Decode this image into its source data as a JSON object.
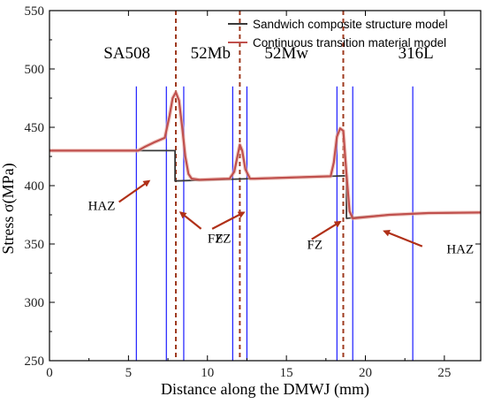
{
  "chart_data": {
    "type": "line",
    "xlabel": "Distance along the DMWJ (mm)",
    "ylabel": "Stress  σ(MPa)",
    "xlim": [
      0,
      27.3
    ],
    "ylim": [
      250,
      550
    ],
    "xticks": [
      0,
      5,
      10,
      15,
      20,
      25
    ],
    "yticks": [
      250,
      300,
      350,
      400,
      450,
      500,
      550
    ],
    "grid": false,
    "legend_position": "top-right",
    "series": [
      {
        "name": "Sandwich composite structure model",
        "color": "#3a3a3a",
        "x": [
          0,
          7.95,
          7.95,
          18.8,
          18.8,
          19.6,
          21.5,
          24.0,
          27.3
        ],
        "y": [
          430,
          430,
          404,
          408.5,
          372,
          373,
          375,
          376.5,
          377
        ]
      },
      {
        "name": "Continuous transition material model",
        "color": "#c0504d",
        "x": [
          0,
          5.6,
          6.0,
          6.6,
          7.3,
          7.6,
          7.8,
          8.0,
          8.2,
          8.4,
          8.6,
          8.8,
          9.0,
          9.5,
          11.4,
          11.7,
          11.9,
          12.05,
          12.2,
          12.4,
          12.7,
          13.0,
          17.8,
          18.0,
          18.2,
          18.4,
          18.6,
          18.8,
          19.0,
          19.2,
          21.5,
          24.0,
          27.3
        ],
        "y": [
          430,
          430,
          433,
          437,
          441,
          460,
          475,
          480,
          473,
          450,
          425,
          410,
          406,
          405,
          406,
          412,
          425,
          435,
          430,
          414,
          406,
          406,
          408,
          420,
          442,
          449,
          447,
          410,
          378,
          372,
          375,
          376.5,
          377
        ]
      }
    ],
    "vlines_dashed": {
      "color": "#9e3a1f",
      "x": [
        8.0,
        12.05,
        18.6
      ]
    },
    "vlines_solid": {
      "color": "#1a1aff",
      "x": [
        5.5,
        7.4,
        8.5,
        11.6,
        12.5,
        18.2,
        19.2,
        23.0
      ]
    },
    "region_labels": [
      {
        "text": "SA508",
        "x": 4.9,
        "y": 509
      },
      {
        "text": "52Mb",
        "x": 10.2,
        "y": 509
      },
      {
        "text": "52Mw",
        "x": 15.0,
        "y": 509
      },
      {
        "text": "316L",
        "x": 23.2,
        "y": 509
      }
    ],
    "annotations": [
      {
        "text": "HAZ",
        "x": 3.3,
        "y": 379,
        "arrow_from": [
          4.4,
          386
        ],
        "arrow_to": [
          6.3,
          404
        ]
      },
      {
        "text": "FZ",
        "x": 10.5,
        "y": 351,
        "arrow_from": [
          9.6,
          363
        ],
        "arrow_to": [
          8.3,
          377
        ]
      },
      {
        "text": "FZ",
        "x": 11.0,
        "y": 351,
        "arrow_from": [
          10.3,
          363
        ],
        "arrow_to": [
          12.3,
          377
        ]
      },
      {
        "text": "FZ",
        "x": 16.8,
        "y": 346,
        "arrow_from": [
          16.6,
          354
        ],
        "arrow_to": [
          18.4,
          369
        ]
      },
      {
        "text": "HAZ",
        "x": 26.0,
        "y": 342,
        "arrow_from": [
          23.6,
          348
        ],
        "arrow_to": [
          21.2,
          361
        ]
      }
    ]
  }
}
